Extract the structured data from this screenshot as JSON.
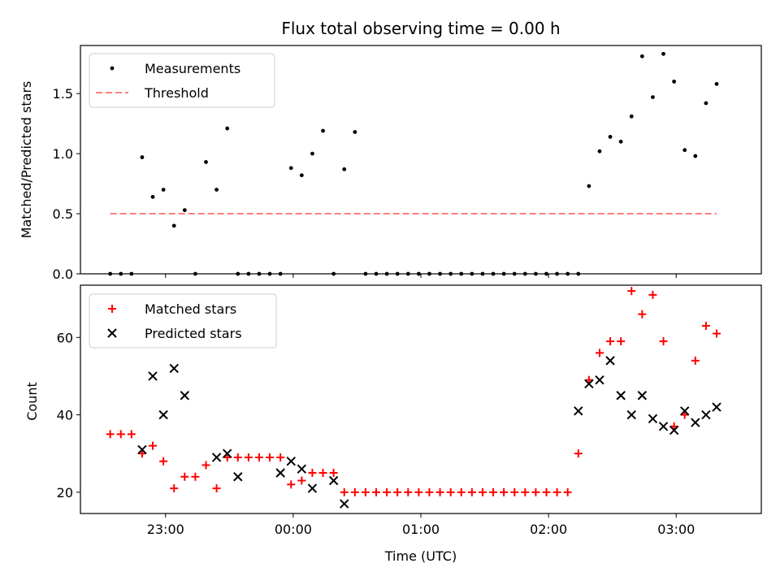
{
  "chart_data": [
    {
      "type": "scatter",
      "title": "Flux total observing time = 0.00 h",
      "xlabel": "",
      "ylabel": "Matched/Predicted stars",
      "ylim": [
        0,
        1.9
      ],
      "yticks": [
        0.0,
        0.5,
        1.0,
        1.5
      ],
      "ytick_labels": [
        "0.0",
        "0.5",
        "1.0",
        "1.5"
      ],
      "grid": false,
      "legend_position": "top-left",
      "series": [
        {
          "name": "Measurements",
          "marker": "dot",
          "color": "#000000",
          "x": [
            "22:34",
            "22:39",
            "22:44",
            "22:49",
            "22:54",
            "22:59",
            "23:04",
            "23:09",
            "23:14",
            "23:19",
            "23:24",
            "23:29",
            "23:34",
            "23:39",
            "23:44",
            "23:49",
            "23:54",
            "23:59",
            "00:04",
            "00:09",
            "00:14",
            "00:19",
            "00:24",
            "00:29",
            "00:34",
            "00:39",
            "00:44",
            "00:49",
            "00:54",
            "00:59",
            "01:04",
            "01:09",
            "01:14",
            "01:19",
            "01:24",
            "01:29",
            "01:34",
            "01:39",
            "01:44",
            "01:49",
            "01:54",
            "01:59",
            "02:04",
            "02:09",
            "02:14",
            "02:19",
            "02:24",
            "02:29",
            "02:34",
            "02:39",
            "02:44",
            "02:49",
            "02:54",
            "02:59",
            "03:04",
            "03:09",
            "03:14",
            "03:19"
          ],
          "y": [
            0,
            0,
            0,
            0.97,
            0.64,
            0.7,
            0.4,
            0.53,
            0,
            0.93,
            0.7,
            1.21,
            0,
            0,
            0,
            0,
            0,
            0.88,
            0.82,
            1.0,
            1.19,
            0,
            0.87,
            1.18,
            0,
            0,
            0,
            0,
            0,
            0,
            0,
            0,
            0,
            0,
            0,
            0,
            0,
            0,
            0,
            0,
            0,
            0,
            0,
            0,
            0,
            0.73,
            1.02,
            1.14,
            1.1,
            1.31,
            1.81,
            1.47,
            1.83,
            1.6,
            1.03,
            0.98,
            1.42,
            1.58
          ]
        },
        {
          "name": "Threshold",
          "style": "dashed",
          "color": "#ff7f7f",
          "x": [
            "22:34",
            "03:19"
          ],
          "y": [
            0.5,
            0.5
          ]
        }
      ]
    },
    {
      "type": "scatter",
      "title": "",
      "xlabel": "Time (UTC)",
      "ylabel": "Count",
      "ylim": [
        14.5,
        73.5
      ],
      "yticks": [
        20,
        40,
        60
      ],
      "ytick_labels": [
        "20",
        "40",
        "60"
      ],
      "xlim": [
        "22:20",
        "03:40"
      ],
      "xticks": [
        "23:00",
        "00:00",
        "01:00",
        "02:00",
        "03:00"
      ],
      "xtick_labels": [
        "23:00",
        "00:00",
        "01:00",
        "02:00",
        "03:00"
      ],
      "grid": false,
      "legend_position": "top-left",
      "series": [
        {
          "name": "Matched stars",
          "marker": "plus",
          "color": "#ff0000",
          "x": [
            "22:34",
            "22:39",
            "22:44",
            "22:49",
            "22:54",
            "22:59",
            "23:04",
            "23:09",
            "23:14",
            "23:19",
            "23:24",
            "23:29",
            "23:34",
            "23:39",
            "23:44",
            "23:49",
            "23:54",
            "23:59",
            "00:04",
            "00:09",
            "00:14",
            "00:19",
            "00:24",
            "00:29",
            "00:34",
            "00:39",
            "00:44",
            "00:49",
            "00:54",
            "00:59",
            "01:04",
            "01:09",
            "01:14",
            "01:19",
            "01:24",
            "01:29",
            "01:34",
            "01:39",
            "01:44",
            "01:49",
            "01:54",
            "01:59",
            "02:04",
            "02:09",
            "02:14",
            "02:19",
            "02:24",
            "02:29",
            "02:34",
            "02:39",
            "02:44",
            "02:49",
            "02:54",
            "02:59",
            "03:04",
            "03:09",
            "03:14",
            "03:19"
          ],
          "y": [
            35,
            35,
            35,
            30,
            32,
            28,
            21,
            24,
            24,
            27,
            21,
            29,
            29,
            29,
            29,
            29,
            29,
            22,
            23,
            25,
            25,
            25,
            20,
            20,
            20,
            20,
            20,
            20,
            20,
            20,
            20,
            20,
            20,
            20,
            20,
            20,
            20,
            20,
            20,
            20,
            20,
            20,
            20,
            20,
            30,
            49,
            56,
            59,
            59,
            72,
            66,
            71,
            59,
            37,
            40,
            54,
            63,
            61
          ]
        },
        {
          "name": "Predicted stars",
          "marker": "x",
          "color": "#000000",
          "x": [
            "22:49",
            "22:54",
            "22:59",
            "23:04",
            "23:09",
            "23:24",
            "23:29",
            "23:34",
            "23:54",
            "23:59",
            "00:04",
            "00:09",
            "00:19",
            "00:24",
            "02:14",
            "02:19",
            "02:24",
            "02:29",
            "02:34",
            "02:39",
            "02:44",
            "02:49",
            "02:54",
            "02:59",
            "03:04",
            "03:09",
            "03:14",
            "03:19"
          ],
          "y": [
            31,
            50,
            40,
            52,
            45,
            29,
            30,
            24,
            25,
            28,
            26,
            21,
            23,
            17,
            41,
            48,
            49,
            54,
            45,
            40,
            45,
            39,
            37,
            36,
            41,
            38,
            40,
            42
          ]
        }
      ]
    }
  ]
}
